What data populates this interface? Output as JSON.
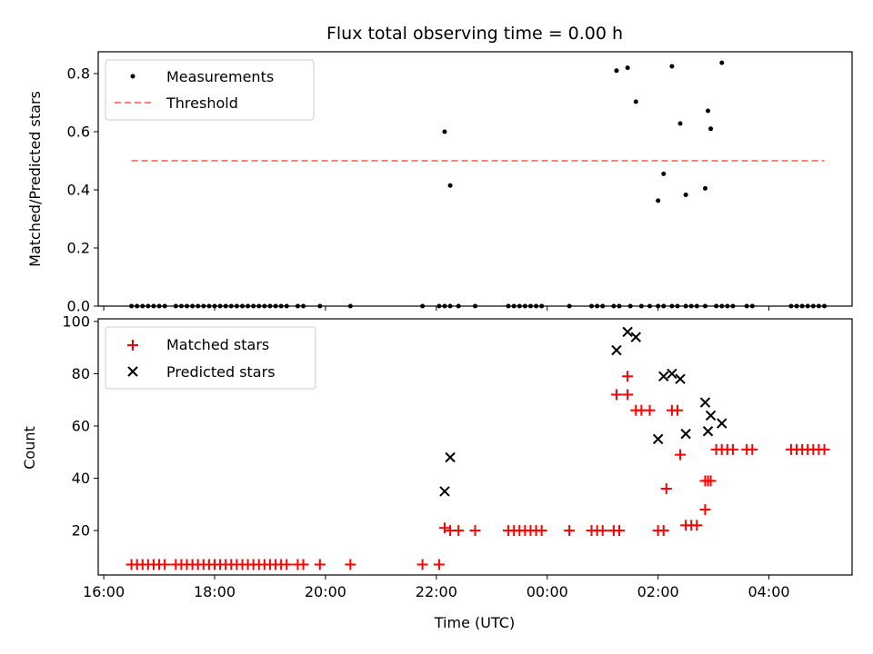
{
  "chart_data": [
    {
      "type": "scatter",
      "title": "Flux total observing time = 0.00 h",
      "xlabel": "",
      "ylabel": "Matched/Predicted stars",
      "ylim": [
        0,
        0.875
      ],
      "yticks": [
        "0.0",
        "0.2",
        "0.4",
        "0.6",
        "0.8"
      ],
      "ytick_values": [
        0.0,
        0.2,
        0.4,
        0.6,
        0.8
      ],
      "xlim_hours": [
        15.9,
        29.5
      ],
      "xticks_hours": [
        16,
        18,
        20,
        22,
        24,
        26,
        28
      ],
      "legend": "top-left",
      "series": [
        {
          "name": "Measurements",
          "marker": "dot",
          "color": "#000000",
          "x": [
            16.5,
            16.6,
            16.7,
            16.8,
            16.9,
            17.0,
            17.1,
            17.3,
            17.4,
            17.5,
            17.6,
            17.7,
            17.8,
            17.9,
            18.0,
            18.1,
            18.2,
            18.3,
            18.4,
            18.5,
            18.6,
            18.7,
            18.8,
            18.9,
            19.0,
            19.1,
            19.2,
            19.3,
            19.5,
            19.6,
            19.9,
            20.45,
            21.75,
            22.05,
            22.15,
            22.25,
            22.4,
            22.7,
            23.3,
            23.4,
            23.5,
            23.6,
            23.7,
            23.8,
            23.9,
            24.4,
            24.8,
            24.9,
            25.0,
            25.2,
            25.3,
            25.5,
            25.7,
            25.85,
            26.0,
            26.1,
            26.25,
            26.35,
            26.5,
            26.6,
            26.7,
            26.85,
            27.05,
            27.15,
            27.25,
            27.35,
            27.6,
            27.7,
            28.4,
            28.5,
            28.6,
            28.7,
            28.8,
            28.9,
            29.0,
            22.15,
            22.25,
            25.25,
            25.45,
            25.6,
            26.0,
            26.1,
            26.25,
            26.4,
            26.5,
            26.85,
            26.9,
            26.95,
            27.15
          ],
          "y": [
            0,
            0,
            0,
            0,
            0,
            0,
            0,
            0,
            0,
            0,
            0,
            0,
            0,
            0,
            0,
            0,
            0,
            0,
            0,
            0,
            0,
            0,
            0,
            0,
            0,
            0,
            0,
            0,
            0,
            0,
            0,
            0,
            0,
            0,
            0,
            0,
            0,
            0,
            0,
            0,
            0,
            0,
            0,
            0,
            0,
            0,
            0,
            0,
            0,
            0,
            0,
            0,
            0,
            0,
            0,
            0,
            0,
            0,
            0,
            0,
            0,
            0,
            0,
            0,
            0,
            0,
            0,
            0,
            0,
            0,
            0,
            0,
            0,
            0,
            0,
            0.6,
            0.415,
            0.81,
            0.82,
            0.703,
            0.363,
            0.455,
            0.825,
            0.628,
            0.383,
            0.405,
            0.672,
            0.61,
            0.837
          ]
        },
        {
          "name": "Threshold",
          "marker": "dashed-line",
          "color": "#ff7f7f",
          "x": [
            16.5,
            29.0
          ],
          "y": [
            0.5,
            0.5
          ]
        }
      ]
    },
    {
      "type": "scatter",
      "title": "",
      "xlabel": "Time (UTC)",
      "ylabel": "Count",
      "ylim": [
        3,
        101
      ],
      "yticks": [
        "20",
        "40",
        "60",
        "80",
        "100"
      ],
      "ytick_values": [
        20,
        40,
        60,
        80,
        100
      ],
      "xlim_hours": [
        15.9,
        29.5
      ],
      "xticks_hours": [
        16,
        18,
        20,
        22,
        24,
        26,
        28
      ],
      "xticks": [
        "16:00",
        "18:00",
        "20:00",
        "22:00",
        "00:00",
        "02:00",
        "04:00"
      ],
      "legend": "top-left",
      "series": [
        {
          "name": "Matched stars",
          "marker": "plus",
          "color": "#ff0000",
          "x": [
            16.5,
            16.6,
            16.7,
            16.8,
            16.9,
            17.0,
            17.1,
            17.3,
            17.4,
            17.5,
            17.6,
            17.7,
            17.8,
            17.9,
            18.0,
            18.1,
            18.2,
            18.3,
            18.4,
            18.5,
            18.6,
            18.7,
            18.8,
            18.9,
            19.0,
            19.1,
            19.2,
            19.3,
            19.5,
            19.6,
            19.9,
            20.45,
            21.75,
            22.05,
            22.15,
            22.25,
            22.4,
            22.7,
            23.3,
            23.4,
            23.5,
            23.6,
            23.7,
            23.8,
            23.9,
            24.4,
            24.8,
            24.9,
            25.0,
            25.2,
            25.3,
            25.25,
            25.45,
            25.45,
            25.6,
            25.7,
            25.85,
            26.0,
            26.1,
            26.25,
            26.35,
            26.5,
            26.6,
            26.7,
            26.85,
            27.05,
            27.15,
            27.25,
            27.35,
            27.6,
            27.7,
            28.4,
            28.5,
            28.6,
            28.7,
            28.8,
            28.9,
            29.0,
            26.15,
            26.4,
            26.85,
            26.9,
            26.95
          ],
          "y": [
            7,
            7,
            7,
            7,
            7,
            7,
            7,
            7,
            7,
            7,
            7,
            7,
            7,
            7,
            7,
            7,
            7,
            7,
            7,
            7,
            7,
            7,
            7,
            7,
            7,
            7,
            7,
            7,
            7,
            7,
            7,
            7,
            7,
            7,
            21,
            20,
            20,
            20,
            20,
            20,
            20,
            20,
            20,
            20,
            20,
            20,
            20,
            20,
            20,
            20,
            20,
            72,
            72,
            79,
            66,
            66,
            66,
            20,
            20,
            66,
            66,
            22,
            22,
            22,
            28,
            51,
            51,
            51,
            51,
            51,
            51,
            51,
            51,
            51,
            51,
            51,
            51,
            51,
            36,
            49,
            39,
            39,
            39
          ]
        },
        {
          "name": "Predicted stars",
          "marker": "x",
          "color": "#000000",
          "x": [
            22.15,
            22.25,
            25.25,
            25.45,
            25.6,
            26.0,
            26.1,
            26.25,
            26.4,
            26.5,
            26.85,
            26.9,
            26.95,
            27.15
          ],
          "y": [
            35,
            48,
            89,
            96,
            94,
            55,
            79,
            80,
            78,
            57,
            69,
            58,
            64,
            61
          ]
        }
      ]
    }
  ]
}
